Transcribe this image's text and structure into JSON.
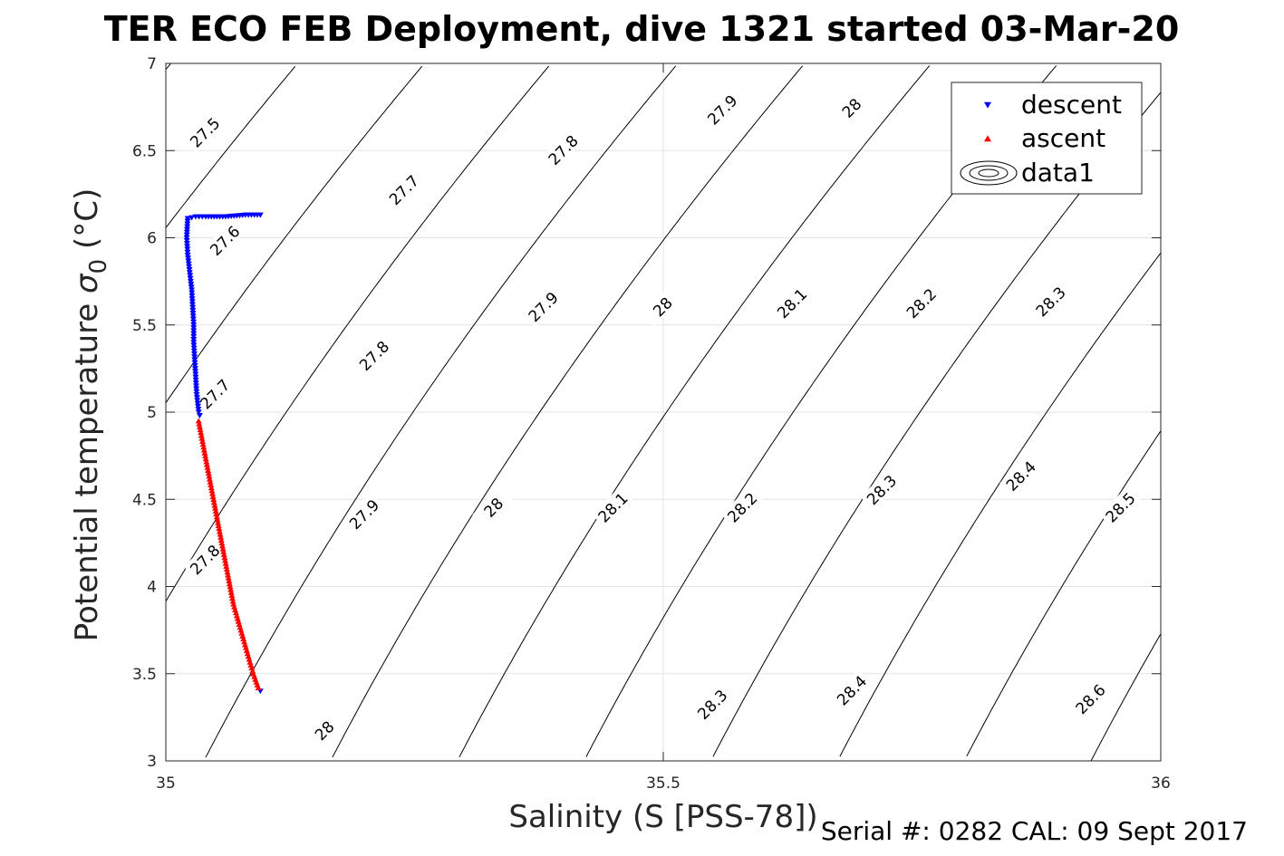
{
  "chart_data": {
    "type": "scatter",
    "title": "TER ECO FEB Deployment, dive 1321 started 03-Mar-20",
    "xlabel": "Salinity (S [PSS-78])",
    "ylabel_main": "Potential temperature ",
    "ylabel_sigma": "σ",
    "ylabel_sub": "0",
    "ylabel_unit": " (°C)",
    "xlim": [
      35,
      36
    ],
    "ylim": [
      3,
      7
    ],
    "xticks": [
      35,
      35.5,
      36
    ],
    "xtick_labels": [
      "35",
      "35.5",
      "36"
    ],
    "yticks": [
      3,
      3.5,
      4,
      4.5,
      5,
      5.5,
      6,
      6.5,
      7
    ],
    "ytick_labels": [
      "3",
      "3.5",
      "4",
      "4.5",
      "5",
      "5.5",
      "6",
      "6.5",
      "7"
    ],
    "grid": true,
    "legend_position": "top-right",
    "legend": [
      "descent",
      "ascent",
      "data1"
    ],
    "series": [
      {
        "name": "descent",
        "color": "#0000ff",
        "marker": "triangle-down",
        "x": [
          35.095,
          35.08,
          35.06,
          35.04,
          35.03,
          35.022,
          35.021,
          35.022,
          35.024,
          35.026,
          35.027,
          35.028,
          35.028,
          35.029,
          35.03,
          35.031,
          35.032,
          35.033,
          35.034,
          35.095
        ],
        "y": [
          6.13,
          6.13,
          6.12,
          6.12,
          6.12,
          6.11,
          6.0,
          5.9,
          5.8,
          5.7,
          5.6,
          5.5,
          5.4,
          5.3,
          5.2,
          5.1,
          5.05,
          5.0,
          4.98,
          3.4
        ]
      },
      {
        "name": "ascent",
        "color": "#ff0000",
        "marker": "triangle-up",
        "x": [
          35.033,
          35.038,
          35.043,
          35.048,
          35.053,
          35.058,
          35.063,
          35.068,
          35.073,
          35.078,
          35.083,
          35.088,
          35.093
        ],
        "y": [
          4.95,
          4.8,
          4.65,
          4.5,
          4.35,
          4.2,
          4.05,
          3.9,
          3.8,
          3.7,
          3.6,
          3.5,
          3.42
        ]
      }
    ],
    "contours": {
      "name": "data1",
      "color": "#000000",
      "levels": [
        27.5,
        27.6,
        27.7,
        27.8,
        27.9,
        28.0,
        28.1,
        28.2,
        28.3,
        28.4,
        28.5,
        28.6
      ],
      "labels": [
        {
          "text": "27.5",
          "s": 35.04,
          "t": 6.6
        },
        {
          "text": "27.6",
          "s": 35.06,
          "t": 5.98
        },
        {
          "text": "27.7",
          "s": 35.05,
          "t": 5.1
        },
        {
          "text": "27.8",
          "s": 35.04,
          "t": 4.15
        },
        {
          "text": "27.7",
          "s": 35.24,
          "t": 6.27
        },
        {
          "text": "27.8",
          "s": 35.21,
          "t": 5.32
        },
        {
          "text": "27.9",
          "s": 35.2,
          "t": 4.41
        },
        {
          "text": "28",
          "s": 35.16,
          "t": 3.17
        },
        {
          "text": "27.8",
          "s": 35.4,
          "t": 6.5
        },
        {
          "text": "27.9",
          "s": 35.38,
          "t": 5.6
        },
        {
          "text": "28",
          "s": 35.33,
          "t": 4.45
        },
        {
          "text": "27.9",
          "s": 35.56,
          "t": 6.73
        },
        {
          "text": "28",
          "s": 35.5,
          "t": 5.6
        },
        {
          "text": "28.1",
          "s": 35.45,
          "t": 4.45
        },
        {
          "text": "28.3",
          "s": 35.55,
          "t": 3.32
        },
        {
          "text": "28",
          "s": 35.69,
          "t": 6.74
        },
        {
          "text": "28.1",
          "s": 35.63,
          "t": 5.62
        },
        {
          "text": "28.2",
          "s": 35.58,
          "t": 4.45
        },
        {
          "text": "28.4",
          "s": 35.69,
          "t": 3.4
        },
        {
          "text": "28.2",
          "s": 35.76,
          "t": 5.62
        },
        {
          "text": "28.3",
          "s": 35.72,
          "t": 4.55
        },
        {
          "text": "28.3",
          "s": 35.89,
          "t": 5.63
        },
        {
          "text": "28.4",
          "s": 35.86,
          "t": 4.63
        },
        {
          "text": "28.5",
          "s": 35.96,
          "t": 4.45
        },
        {
          "text": "28.6",
          "s": 35.93,
          "t": 3.35
        }
      ]
    }
  },
  "annotations": {
    "serial": "Serial #: 0282  CAL: 09 Sept 2017"
  }
}
